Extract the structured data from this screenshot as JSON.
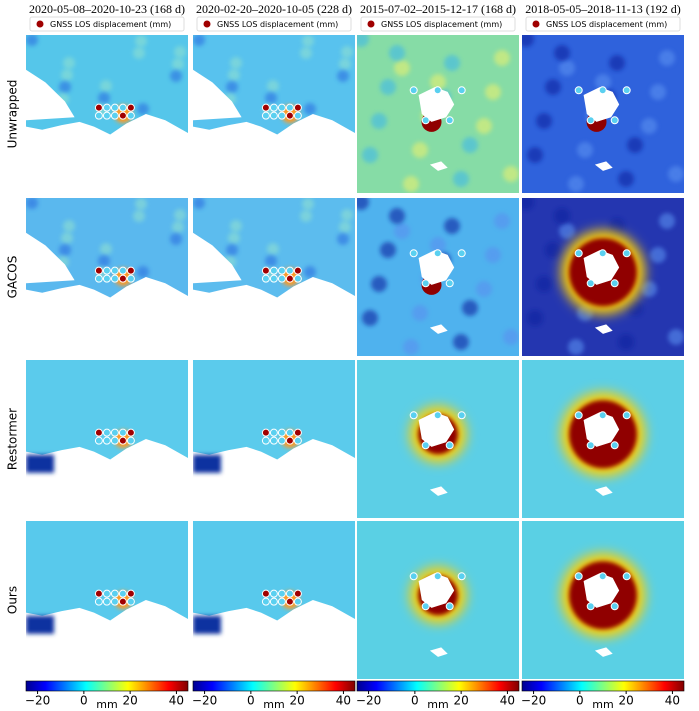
{
  "columns": [
    {
      "title": "2020-05-08–2020-10-23 (168 d)",
      "legend": "GNSS LOS displacement (mm)"
    },
    {
      "title": "2020-02-20–2020-10-05 (228 d)",
      "legend": "GNSS LOS displacement (mm)"
    },
    {
      "title": "2015-07-02–2015-12-17 (168 d)",
      "legend": "GNSS LOS displacement (mm)"
    },
    {
      "title": "2018-05-05–2018-11-13 (192 d)",
      "legend": "GNSS LOS displacement (mm)"
    }
  ],
  "rows": [
    "Unwrapped",
    "GACOS",
    "Restormer",
    "Ours"
  ],
  "colorbar": {
    "label": "mm",
    "lim": [
      -25,
      45
    ],
    "ticks": [
      {
        "value": -20,
        "label": "−20"
      },
      0,
      20,
      40
    ]
  }
}
